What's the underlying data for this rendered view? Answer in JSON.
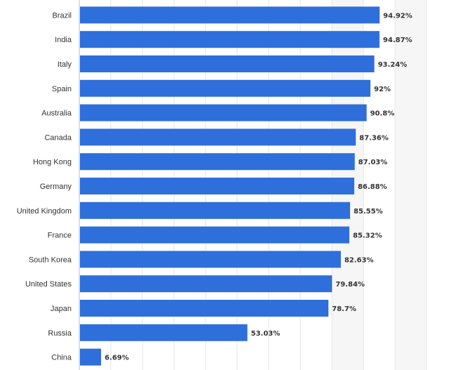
{
  "chart_data": {
    "type": "bar",
    "orientation": "horizontal",
    "categories": [
      "Brazil",
      "India",
      "Italy",
      "Spain",
      "Australia",
      "Canada",
      "Hong Kong",
      "Germany",
      "United Kingdom",
      "France",
      "South Korea",
      "United States",
      "Japan",
      "Russia",
      "China"
    ],
    "values": [
      94.92,
      94.87,
      93.24,
      92,
      90.8,
      87.36,
      87.03,
      86.88,
      85.55,
      85.32,
      82.63,
      79.84,
      78.7,
      53.03,
      6.69
    ],
    "value_labels": [
      "94.92%",
      "94.87%",
      "93.24%",
      "92%",
      "90.8%",
      "87.36%",
      "87.03%",
      "86.88%",
      "85.55%",
      "85.32%",
      "82.63%",
      "79.84%",
      "78.7%",
      "53.03%",
      "6.69%"
    ],
    "title": "",
    "xlabel": "",
    "ylabel": "",
    "xlim": [
      0,
      110
    ],
    "grid": true,
    "legend": "none",
    "bar_color": "#2e6fdb",
    "grid_color": "#e6e6e6",
    "band_color": "#f6f6f6"
  }
}
